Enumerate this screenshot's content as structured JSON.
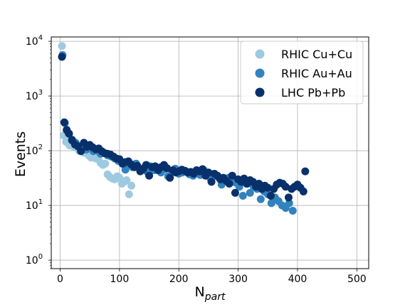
{
  "chart_data": {
    "type": "scatter",
    "title": "",
    "xlabel": "N",
    "xlabel_sub": "part",
    "ylabel": "Events",
    "xlim": [
      -15,
      520
    ],
    "ylim": [
      0.7,
      12000
    ],
    "yscale": "log",
    "grid": true,
    "legend_position": "top-right",
    "x_ticks": [
      {
        "value": 0,
        "label": "0"
      },
      {
        "value": 100,
        "label": "100"
      },
      {
        "value": 200,
        "label": "200"
      },
      {
        "value": 300,
        "label": "300"
      },
      {
        "value": 400,
        "label": "400"
      },
      {
        "value": 500,
        "label": "500"
      }
    ],
    "y_ticks": [
      {
        "value": 1,
        "base": "10",
        "exp": "0"
      },
      {
        "value": 10,
        "base": "10",
        "exp": "1"
      },
      {
        "value": 100,
        "base": "10",
        "exp": "2"
      },
      {
        "value": 1000,
        "base": "10",
        "exp": "3"
      },
      {
        "value": 10000,
        "base": "10",
        "exp": "4"
      }
    ],
    "series": [
      {
        "name": "RHIC Cu+Cu",
        "color": "#9ecae1",
        "points": [
          [
            3,
            8200
          ],
          [
            6,
            190
          ],
          [
            10,
            145
          ],
          [
            13,
            170
          ],
          [
            16,
            125
          ],
          [
            20,
            150
          ],
          [
            24,
            115
          ],
          [
            28,
            130
          ],
          [
            32,
            100
          ],
          [
            36,
            110
          ],
          [
            40,
            92
          ],
          [
            44,
            100
          ],
          [
            48,
            82
          ],
          [
            52,
            75
          ],
          [
            56,
            85
          ],
          [
            60,
            72
          ],
          [
            64,
            70
          ],
          [
            68,
            60
          ],
          [
            72,
            55
          ],
          [
            76,
            58
          ],
          [
            80,
            37
          ],
          [
            84,
            33
          ],
          [
            88,
            31
          ],
          [
            92,
            30
          ],
          [
            96,
            34
          ],
          [
            100,
            32
          ],
          [
            104,
            25
          ],
          [
            108,
            27
          ],
          [
            112,
            29
          ],
          [
            116,
            16
          ],
          [
            120,
            23
          ]
        ]
      },
      {
        "name": "RHIC Au+Au",
        "color": "#3182bd",
        "points": [
          [
            4,
            5600
          ],
          [
            8,
            320
          ],
          [
            14,
            210
          ],
          [
            20,
            160
          ],
          [
            26,
            140
          ],
          [
            32,
            118
          ],
          [
            38,
            125
          ],
          [
            44,
            105
          ],
          [
            50,
            112
          ],
          [
            56,
            98
          ],
          [
            62,
            102
          ],
          [
            68,
            88
          ],
          [
            74,
            92
          ],
          [
            80,
            82
          ],
          [
            86,
            78
          ],
          [
            92,
            72
          ],
          [
            98,
            65
          ],
          [
            104,
            60
          ],
          [
            110,
            45
          ],
          [
            116,
            55
          ],
          [
            122,
            50
          ],
          [
            128,
            58
          ],
          [
            134,
            46
          ],
          [
            140,
            48
          ],
          [
            146,
            42
          ],
          [
            152,
            52
          ],
          [
            158,
            44
          ],
          [
            164,
            48
          ],
          [
            170,
            40
          ],
          [
            176,
            46
          ],
          [
            182,
            34
          ],
          [
            188,
            42
          ],
          [
            194,
            47
          ],
          [
            200,
            38
          ],
          [
            206,
            40
          ],
          [
            212,
            42
          ],
          [
            218,
            37
          ],
          [
            224,
            35
          ],
          [
            230,
            40
          ],
          [
            236,
            36
          ],
          [
            242,
            44
          ],
          [
            248,
            38
          ],
          [
            254,
            30
          ],
          [
            260,
            37
          ],
          [
            266,
            33
          ],
          [
            272,
            24
          ],
          [
            278,
            30
          ],
          [
            284,
            32
          ],
          [
            290,
            28
          ],
          [
            296,
            26
          ],
          [
            302,
            22
          ],
          [
            308,
            15
          ],
          [
            314,
            25
          ],
          [
            320,
            17
          ],
          [
            326,
            22
          ],
          [
            332,
            20
          ],
          [
            338,
            13
          ],
          [
            344,
            18
          ],
          [
            350,
            16
          ],
          [
            356,
            11
          ],
          [
            362,
            14
          ],
          [
            368,
            12
          ],
          [
            374,
            10
          ],
          [
            380,
            9
          ],
          [
            386,
            11
          ],
          [
            392,
            8
          ]
        ]
      },
      {
        "name": "LHC Pb+Pb",
        "color": "#08306b",
        "points": [
          [
            3,
            5200
          ],
          [
            7,
            330
          ],
          [
            11,
            240
          ],
          [
            15,
            205
          ],
          [
            20,
            155
          ],
          [
            25,
            130
          ],
          [
            30,
            120
          ],
          [
            35,
            98
          ],
          [
            40,
            140
          ],
          [
            45,
            118
          ],
          [
            50,
            128
          ],
          [
            55,
            115
          ],
          [
            60,
            106
          ],
          [
            65,
            110
          ],
          [
            70,
            98
          ],
          [
            75,
            90
          ],
          [
            80,
            88
          ],
          [
            85,
            85
          ],
          [
            90,
            78
          ],
          [
            95,
            72
          ],
          [
            100,
            70
          ],
          [
            105,
            58
          ],
          [
            110,
            62
          ],
          [
            115,
            64
          ],
          [
            120,
            56
          ],
          [
            125,
            50
          ],
          [
            130,
            53
          ],
          [
            135,
            42
          ],
          [
            140,
            46
          ],
          [
            145,
            55
          ],
          [
            150,
            35
          ],
          [
            155,
            50
          ],
          [
            160,
            52
          ],
          [
            165,
            44
          ],
          [
            170,
            50
          ],
          [
            175,
            55
          ],
          [
            180,
            48
          ],
          [
            185,
            32
          ],
          [
            190,
            44
          ],
          [
            195,
            40
          ],
          [
            200,
            42
          ],
          [
            205,
            45
          ],
          [
            210,
            43
          ],
          [
            215,
            40
          ],
          [
            220,
            41
          ],
          [
            225,
            38
          ],
          [
            230,
            44
          ],
          [
            235,
            42
          ],
          [
            240,
            46
          ],
          [
            245,
            35
          ],
          [
            250,
            40
          ],
          [
            255,
            27
          ],
          [
            260,
            38
          ],
          [
            265,
            35
          ],
          [
            270,
            30
          ],
          [
            275,
            32
          ],
          [
            280,
            28
          ],
          [
            285,
            25
          ],
          [
            290,
            35
          ],
          [
            295,
            17
          ],
          [
            300,
            30
          ],
          [
            305,
            27
          ],
          [
            310,
            31
          ],
          [
            315,
            25
          ],
          [
            320,
            29
          ],
          [
            325,
            27
          ],
          [
            330,
            22
          ],
          [
            335,
            25
          ],
          [
            340,
            20
          ],
          [
            345,
            23
          ],
          [
            350,
            21
          ],
          [
            355,
            15
          ],
          [
            360,
            20
          ],
          [
            365,
            24
          ],
          [
            370,
            26
          ],
          [
            375,
            25
          ],
          [
            380,
            22
          ],
          [
            385,
            14
          ],
          [
            390,
            20
          ],
          [
            395,
            22
          ],
          [
            400,
            24
          ],
          [
            405,
            21
          ],
          [
            410,
            18
          ],
          [
            413,
            42
          ]
        ]
      }
    ]
  }
}
